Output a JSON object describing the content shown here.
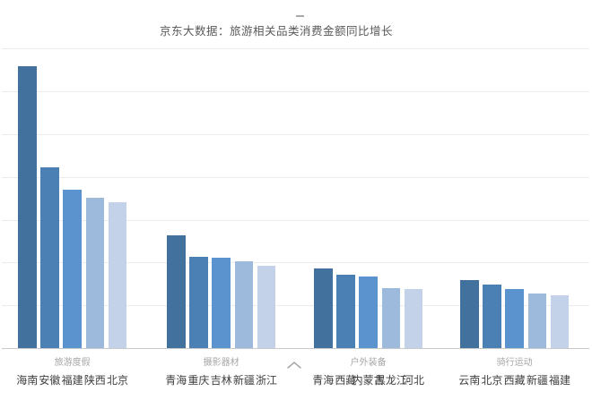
{
  "title": "京东大数据：旅游相关品类消费金额同比增长",
  "decorations": {
    "top_dash": "dash",
    "bottom_caret": "caret-up"
  },
  "palette": {
    "bar_colors": [
      "#41719c",
      "#4a80b4",
      "#5b93cf",
      "#9db9dc",
      "#c3d2e8"
    ],
    "gridline": "#ececec",
    "axis_line": "#c9c9c9",
    "title_text": "#595959",
    "tick_text": "#3f3f3f",
    "group_text": "#a6a6a6",
    "background": "#ffffff"
  },
  "chart_data": {
    "type": "bar",
    "title": "京东大数据：旅游相关品类消费金额同比增长",
    "xlabel": "",
    "ylabel": "",
    "ylim": [
      0,
      700
    ],
    "gridline_interval": 100,
    "grid": true,
    "legend_position": "none",
    "note": "y-axis has no visible tick labels; values estimated in relative units where one gridline interval = 100",
    "groups": [
      {
        "label": "旅游度假",
        "categories": [
          "海南",
          "安徽",
          "福建",
          "陕西",
          "北京"
        ],
        "values": [
          660,
          422,
          370,
          352,
          341
        ]
      },
      {
        "label": "摄影器材",
        "categories": [
          "青海",
          "重庆",
          "吉林",
          "新疆",
          "浙江"
        ],
        "values": [
          263,
          214,
          211,
          203,
          192
        ]
      },
      {
        "label": "户外装备",
        "categories": [
          "青海",
          "西藏",
          "内蒙古",
          "黑龙江",
          "河北"
        ],
        "values": [
          186,
          172,
          167,
          140,
          138
        ]
      },
      {
        "label": "骑行运动",
        "categories": [
          "云南",
          "北京",
          "西藏",
          "新疆",
          "福建"
        ],
        "values": [
          159,
          148,
          138,
          128,
          123
        ]
      }
    ],
    "bar_colors": [
      "#41719c",
      "#4a80b4",
      "#5b93cf",
      "#9db9dc",
      "#c3d2e8"
    ]
  }
}
